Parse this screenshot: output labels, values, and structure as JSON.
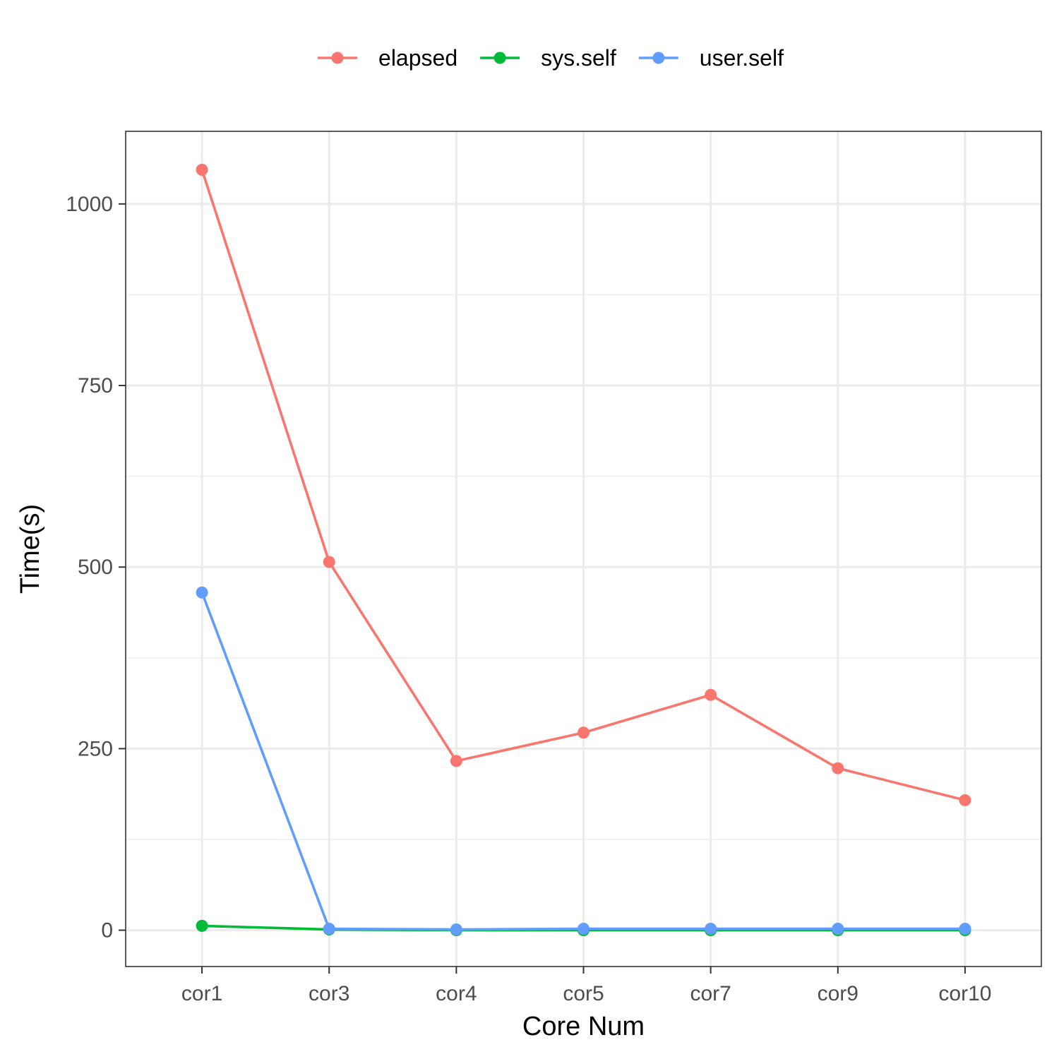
{
  "chart_data": {
    "type": "line",
    "categories": [
      "cor1",
      "cor3",
      "cor4",
      "cor5",
      "cor7",
      "cor9",
      "cor10"
    ],
    "series": [
      {
        "name": "elapsed",
        "color": "#F8766D",
        "values": [
          1047,
          507,
          233,
          272,
          324,
          223,
          179
        ]
      },
      {
        "name": "sys.self",
        "color": "#00BA38",
        "values": [
          6,
          1,
          0,
          0,
          0,
          0,
          0
        ]
      },
      {
        "name": "user.self",
        "color": "#619CFF",
        "values": [
          465,
          2,
          1,
          2,
          2,
          2,
          2
        ]
      }
    ],
    "xlabel": "Core Num",
    "ylabel": "Time(s)",
    "ylim": [
      -50,
      1100
    ],
    "yticks": [
      0,
      250,
      500,
      750,
      1000
    ],
    "grid": true,
    "legend_position": "top"
  }
}
